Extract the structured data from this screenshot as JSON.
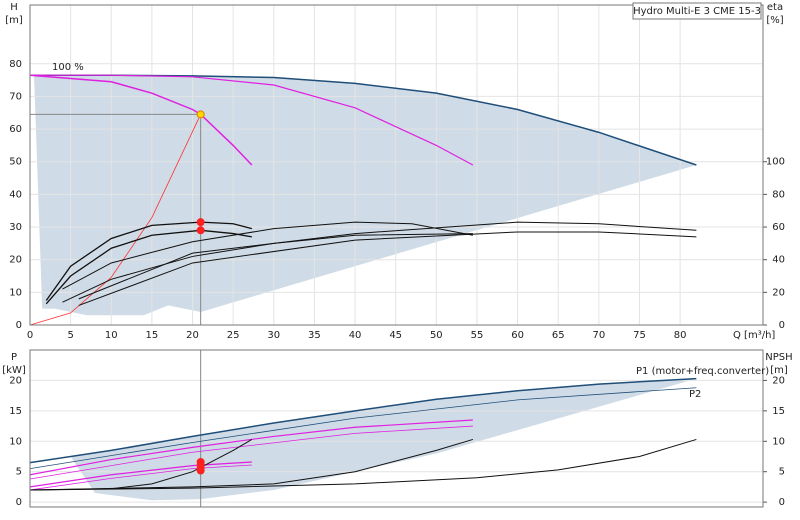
{
  "chart_data": [
    {
      "type": "line",
      "title": "Hydro Multi-E 3 CME 15-3",
      "y_label": "H",
      "y_unit": "[m]",
      "y2_label": "eta",
      "y2_unit": "[%]",
      "x_label": "Q [m³/h]",
      "annotation": "100 %",
      "xlim": [
        0,
        90.2
      ],
      "xticks": [
        0,
        5,
        10,
        15,
        20,
        25,
        30,
        35,
        40,
        45,
        50,
        55,
        60,
        65,
        70,
        75,
        80
      ],
      "ylim": [
        0,
        98
      ],
      "yticks": [
        0,
        10,
        20,
        30,
        40,
        50,
        60,
        70,
        80
      ],
      "y2lim": [
        0,
        196
      ],
      "y2ticks": [
        0,
        20,
        40,
        60,
        80,
        100
      ],
      "grid": true,
      "area": {
        "color": "#cfdbe6",
        "x": [
          0,
          10,
          20,
          30,
          40,
          50,
          60,
          70,
          82,
          21,
          17,
          14,
          7,
          3,
          1.5,
          0.5
        ],
        "y": [
          76.5,
          76.5,
          76.3,
          75.8,
          74,
          71,
          66,
          59,
          49,
          4,
          6,
          3,
          3,
          5,
          5,
          76.5
        ]
      },
      "series": [
        {
          "color": "#1f4e79",
          "width": 1.5,
          "x": [
            0,
            10,
            20,
            30,
            40,
            50,
            60,
            70,
            82
          ],
          "values": [
            76.5,
            76.5,
            76.3,
            75.8,
            74,
            71,
            66,
            59,
            49
          ]
        },
        {
          "color": "#e020e0",
          "width": 1.5,
          "x": [
            0,
            10,
            15,
            20,
            21,
            25,
            27.3
          ],
          "values": [
            76.5,
            74.5,
            71,
            66,
            64.5,
            55,
            49
          ]
        },
        {
          "color": "#e020e0",
          "width": 1.2,
          "x": [
            0,
            10,
            20,
            30,
            40,
            50,
            54.5
          ],
          "values": [
            76.5,
            76.5,
            76,
            73.5,
            66.5,
            55,
            49
          ]
        },
        {
          "color": "#ff3030",
          "width": 0.8,
          "x": [
            0,
            5,
            10,
            15,
            21
          ],
          "values": [
            0,
            3.7,
            14.6,
            32.9,
            64.5
          ]
        },
        {
          "color": "#111111",
          "width": 1.3,
          "axis": "y2",
          "x": [
            2,
            5,
            10,
            15,
            21,
            25,
            27.3
          ],
          "values": [
            15,
            36,
            53,
            61,
            63,
            62,
            59
          ]
        },
        {
          "color": "#111111",
          "width": 1.3,
          "axis": "y2",
          "x": [
            2,
            5,
            10,
            15,
            21,
            25,
            27.3
          ],
          "values": [
            13,
            30,
            47,
            55,
            58,
            56,
            54
          ]
        },
        {
          "color": "#111111",
          "width": 1,
          "axis": "y2",
          "x": [
            4,
            10,
            20,
            30,
            40,
            47,
            54.5
          ],
          "values": [
            22,
            38,
            51,
            59,
            63,
            62,
            55
          ]
        },
        {
          "color": "#111111",
          "width": 1,
          "axis": "y2",
          "x": [
            4,
            10,
            20,
            30,
            40,
            54.5
          ],
          "values": [
            14,
            28,
            42,
            50,
            55,
            56
          ]
        },
        {
          "color": "#111111",
          "width": 1,
          "axis": "y2",
          "x": [
            6,
            20,
            40,
            60,
            70,
            82
          ],
          "values": [
            16,
            44,
            56,
            63,
            62,
            58
          ]
        },
        {
          "color": "#111111",
          "width": 1,
          "axis": "y2",
          "x": [
            6,
            20,
            40,
            60,
            70,
            82
          ],
          "values": [
            12,
            38,
            52,
            57,
            57,
            54
          ]
        }
      ],
      "markers": [
        {
          "color": "#ff2020",
          "axis": "y2",
          "x": [
            21,
            21
          ],
          "values": [
            63,
            58
          ]
        },
        {
          "color": "#ffd700",
          "x": [
            21
          ],
          "values": [
            64.5
          ]
        }
      ],
      "duty_point": {
        "x": 21,
        "y": 64.5
      }
    },
    {
      "type": "line",
      "y_label": "P",
      "y_unit": "[kW]",
      "y2_label": "NPSH",
      "y2_unit": "[m]",
      "xlim": [
        0,
        90.2
      ],
      "ylim": [
        -0.8,
        25
      ],
      "yticks": [
        0,
        5,
        10,
        15,
        20
      ],
      "y2lim": [
        -0.8,
        25
      ],
      "y2ticks": [
        0,
        5,
        10,
        15,
        20
      ],
      "grid": true,
      "area": {
        "color": "#cfdbe6",
        "x": [
          5,
          10,
          20,
          30,
          40,
          50,
          60,
          70,
          82,
          50,
          30,
          21,
          15,
          8,
          5
        ],
        "y": [
          7.5,
          8.5,
          10.8,
          13,
          15,
          16.9,
          18.3,
          19.4,
          20.3,
          8,
          2,
          0.5,
          0.3,
          1.5,
          7.5
        ]
      },
      "series": [
        {
          "name": "P1 (motor+freq.converter)",
          "color": "#1f4e79",
          "width": 1.5,
          "x": [
            0,
            10,
            20,
            30,
            40,
            50,
            60,
            70,
            82
          ],
          "values": [
            6.5,
            8.5,
            10.8,
            13,
            15,
            16.9,
            18.3,
            19.4,
            20.3
          ]
        },
        {
          "name": "P2",
          "color": "#1f4e79",
          "width": 0.8,
          "x": [
            0,
            20,
            40,
            60,
            82
          ],
          "values": [
            5.5,
            9.8,
            13.8,
            16.8,
            18.8
          ]
        },
        {
          "color": "#e020e0",
          "width": 1.2,
          "x": [
            0,
            10,
            20,
            30,
            40,
            54.5
          ],
          "values": [
            4.5,
            7,
            9,
            10.8,
            12.3,
            13.5
          ]
        },
        {
          "color": "#e020e0",
          "width": 0.8,
          "x": [
            0,
            20,
            40,
            54.5
          ],
          "values": [
            3.8,
            8.2,
            11.3,
            12.5
          ]
        },
        {
          "color": "#e020e0",
          "width": 1.2,
          "x": [
            0,
            10,
            20,
            27.3
          ],
          "values": [
            2.5,
            4.5,
            6,
            6.6
          ]
        },
        {
          "color": "#e020e0",
          "width": 0.8,
          "x": [
            0,
            10,
            20,
            27.3
          ],
          "values": [
            2,
            3.9,
            5.5,
            6.1
          ]
        },
        {
          "color": "#111111",
          "width": 1,
          "axis": "y2",
          "x": [
            0,
            20,
            40,
            55,
            65,
            75,
            82
          ],
          "values": [
            2,
            2.3,
            3,
            4,
            5.3,
            7.5,
            10.3
          ]
        },
        {
          "color": "#111111",
          "width": 1,
          "axis": "y2",
          "x": [
            0,
            20,
            30,
            40,
            50,
            54.5
          ],
          "values": [
            2,
            2.5,
            3,
            5,
            8.5,
            10.3
          ]
        },
        {
          "color": "#111111",
          "width": 1,
          "axis": "y2",
          "x": [
            0,
            10,
            15,
            20,
            25,
            27.3
          ],
          "values": [
            2,
            2.2,
            3,
            5,
            8.5,
            10.3
          ]
        }
      ],
      "markers": [
        {
          "color": "#ff2020",
          "x": [
            21,
            21,
            21,
            21
          ],
          "values": [
            6.6,
            6.1,
            5.6,
            5.2
          ]
        }
      ],
      "duty_point": {
        "x": 21
      }
    }
  ]
}
